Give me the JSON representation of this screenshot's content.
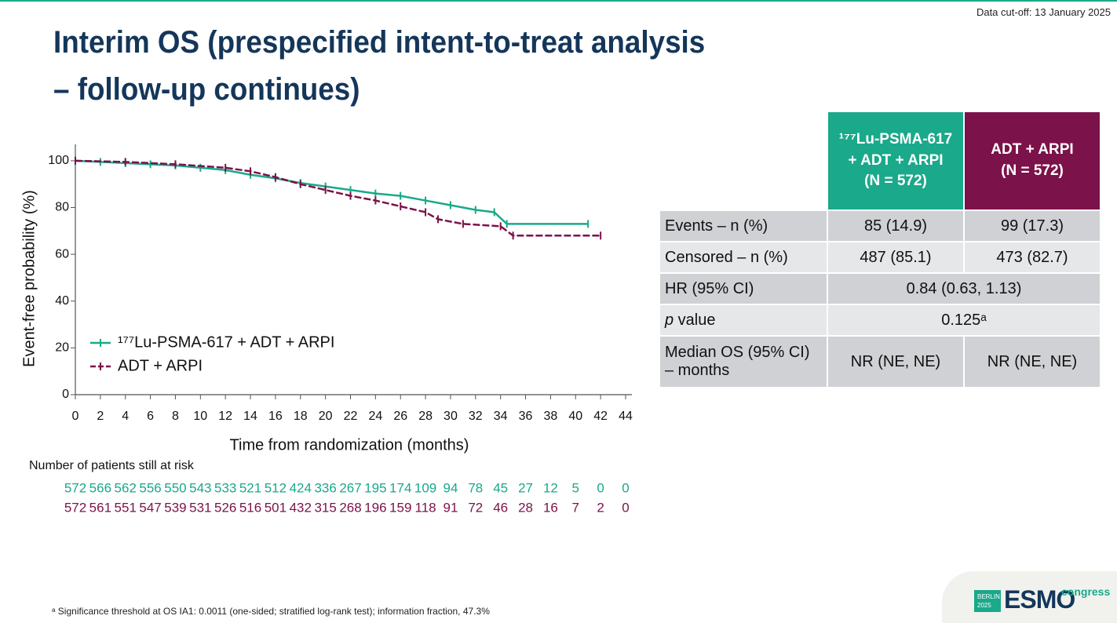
{
  "header": {
    "title": "Interim OS (prespecified intent-to-treat analysis – follow-up continues)",
    "cutoff": "Data cut-off: 13 January 2025"
  },
  "chart_data": {
    "type": "line",
    "step": true,
    "ylabel": "Event-free probability (%)",
    "xlabel": "Time from randomization (months)",
    "xlim": [
      0,
      44
    ],
    "ylim": [
      0,
      107
    ],
    "xticks": [
      0,
      2,
      4,
      6,
      8,
      10,
      12,
      14,
      16,
      18,
      20,
      22,
      24,
      26,
      28,
      30,
      32,
      34,
      36,
      38,
      40,
      42,
      44
    ],
    "yticks": [
      0,
      20,
      40,
      60,
      80,
      100
    ],
    "at_risk_title": "Number of patients still at risk",
    "series": [
      {
        "name": "¹⁷⁷Lu-PSMA-617 + ADT + ARPI",
        "color": "#1aa98a",
        "x": [
          0,
          2,
          4,
          6,
          8,
          10,
          12,
          14,
          16,
          18,
          20,
          22,
          24,
          26,
          28,
          30,
          32,
          33.5,
          34.5,
          41
        ],
        "values": [
          100,
          99.5,
          99,
          98.5,
          98,
          97,
          96,
          94,
          92.5,
          90.5,
          89,
          87.5,
          86,
          85,
          83,
          81,
          79,
          78,
          73,
          73
        ],
        "at_risk": [
          572,
          566,
          562,
          556,
          550,
          543,
          533,
          521,
          512,
          424,
          336,
          267,
          195,
          174,
          109,
          94,
          78,
          45,
          27,
          12,
          5,
          0,
          0
        ]
      },
      {
        "name": "ADT + ARPI",
        "color": "#7b1249",
        "x": [
          0,
          4,
          8,
          12,
          14,
          16,
          18,
          20,
          22,
          24,
          26,
          28,
          29,
          31,
          34,
          35,
          42
        ],
        "values": [
          100,
          99.5,
          98.5,
          97,
          95.5,
          93,
          90,
          87.5,
          85,
          83,
          80.5,
          78,
          75,
          73,
          72,
          68,
          68
        ],
        "at_risk": [
          572,
          561,
          551,
          547,
          539,
          531,
          526,
          516,
          501,
          432,
          315,
          268,
          196,
          159,
          118,
          91,
          72,
          46,
          28,
          16,
          7,
          2,
          0
        ]
      }
    ]
  },
  "table": {
    "columns": [
      "¹⁷⁷Lu-PSMA-617\n+ ADT + ARPI\n(N = 572)",
      "ADT + ARPI\n(N = 572)"
    ],
    "rows": [
      [
        "Events – n (%)",
        "85 (14.9)",
        "99 (17.3)"
      ],
      [
        "Censored – n (%)",
        "487 (85.1)",
        "473 (82.7)"
      ],
      [
        "HR (95% CI)",
        "0.84 (0.63, 1.13)"
      ],
      [
        "p value",
        "0.125ᵃ"
      ],
      [
        "Median OS (95% CI)\n– months",
        "NR (NE, NE)",
        "NR (NE, NE)"
      ]
    ]
  },
  "footnote": "ᵃ Significance threshold at OS IA1: 0.0011 (one-sided; stratified log-rank test); information fraction, 47.3%",
  "logo": {
    "city": "BERLIN",
    "year": "2025",
    "name": "ESMO",
    "suffix": "congress"
  }
}
